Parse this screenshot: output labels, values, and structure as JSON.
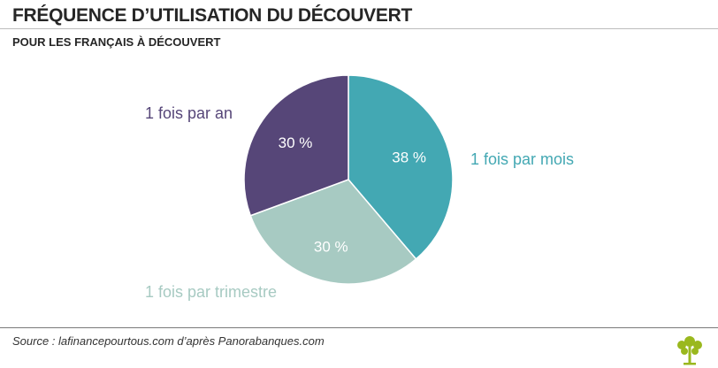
{
  "header": {
    "title": "FRÉQUENCE D’UTILISATION DU DÉCOUVERT",
    "subtitle": "POUR LES FRANÇAIS À DÉCOUVERT"
  },
  "chart_data": {
    "type": "pie",
    "title": "FRÉQUENCE D’UTILISATION DU DÉCOUVERT",
    "subtitle": "POUR LES FRANÇAIS À DÉCOUVERT",
    "slices": [
      {
        "label": "1 fois par mois",
        "value": 38,
        "value_label": "38 %",
        "color": "#43a8b3"
      },
      {
        "label": "1 fois par trimestre",
        "value": 30,
        "value_label": "30 %",
        "color": "#a7cac2"
      },
      {
        "label": "1 fois par an",
        "value": 30,
        "value_label": "30 %",
        "color": "#564678"
      }
    ],
    "start": "12 o'clock",
    "direction": "clockwise",
    "legend": "outside labels"
  },
  "footer": {
    "source": "Source : lafinancepourtous.com d’après Panorabanques.com",
    "logo_icon": "tree-logo-icon",
    "logo_color": "#9ab81e"
  }
}
